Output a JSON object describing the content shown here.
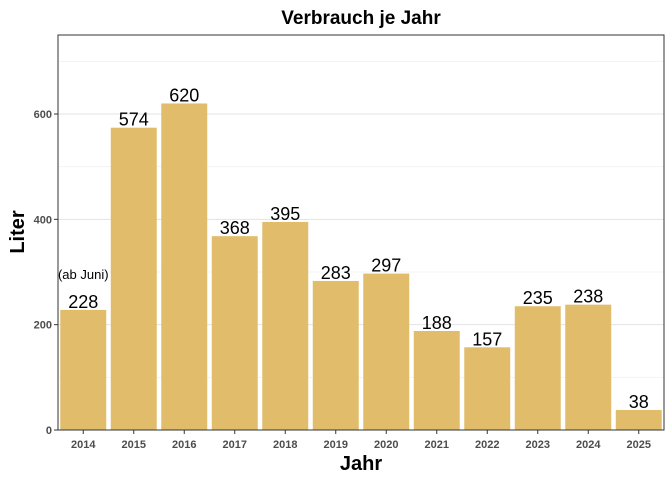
{
  "chart_data": {
    "type": "bar",
    "title": "Verbrauch je Jahr",
    "xlabel": "Jahr",
    "ylabel": "Liter",
    "categories": [
      "2014",
      "2015",
      "2016",
      "2017",
      "2018",
      "2019",
      "2020",
      "2021",
      "2022",
      "2023",
      "2024",
      "2025"
    ],
    "values": [
      228,
      574,
      620,
      368,
      395,
      283,
      297,
      188,
      157,
      235,
      238,
      38
    ],
    "ylim": [
      0,
      750
    ],
    "yticks": [
      0,
      200,
      400,
      600
    ],
    "annotations": [
      {
        "category": "2014",
        "text": "(ab Juni)"
      }
    ],
    "grid": true,
    "legend": "none",
    "colors": {
      "bar": "#e0bc6b",
      "grid_major": "#e3e3e3",
      "grid_minor": "#f1f1f1",
      "frame": "#333333"
    }
  }
}
